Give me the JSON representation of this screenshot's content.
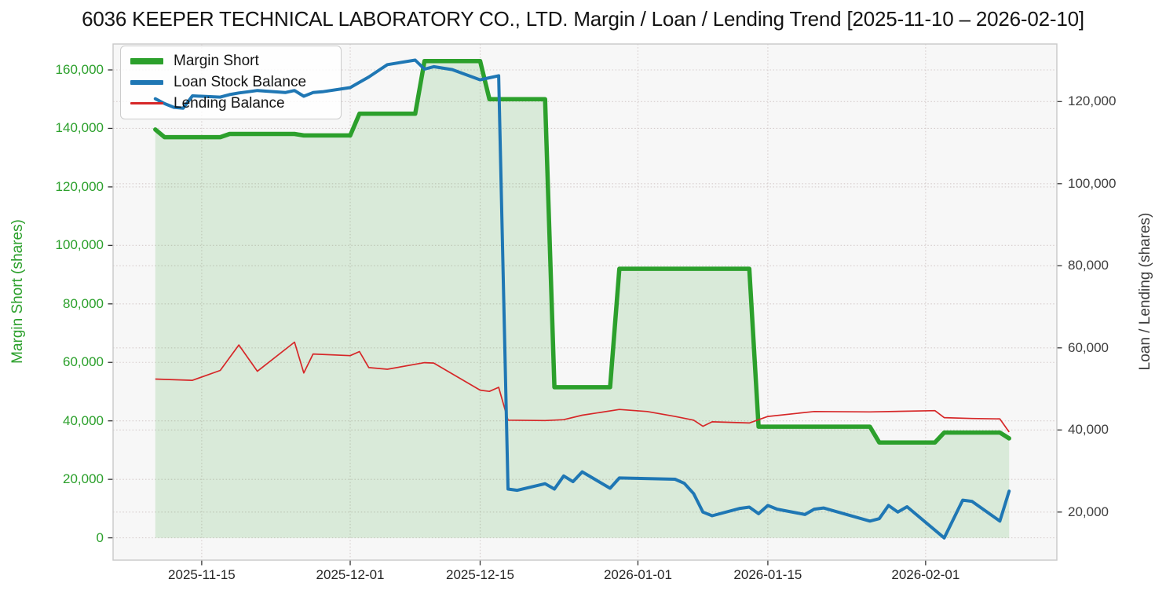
{
  "title": "6036 KEEPER TECHNICAL LABORATORY CO., LTD. Margin / Loan / Lending Trend [2025-11-10 – 2026-02-10]",
  "colors": {
    "margin_short": "#2ca02c",
    "loan_stock": "#1f77b4",
    "lending": "#d62728",
    "area_fill": "rgba(44,160,44,0.15)",
    "plot_bg": "#f7f7f7",
    "grid": "#d5cccc",
    "spine": "#c9c9c9",
    "tick_mark": "#333333",
    "x_tick_text": "#262626",
    "right_tick_text": "#3d3d3d"
  },
  "chart_data": {
    "type": "line",
    "title": "6036 KEEPER TECHNICAL LABORATORY CO., LTD. Margin / Loan / Lending Trend [2025-11-10 – 2026-02-10]",
    "grid": true,
    "legend_position": "upper-left",
    "x_axis": {
      "start": "2025-11-10",
      "end": "2026-02-10",
      "ticks": [
        "2025-11-15",
        "2025-12-01",
        "2025-12-15",
        "2026-01-01",
        "2026-01-15",
        "2026-02-01"
      ]
    },
    "left_axis": {
      "label": "Margin Short (shares)",
      "ticks": [
        0,
        20000,
        40000,
        60000,
        80000,
        100000,
        120000,
        140000,
        160000
      ],
      "ylim": [
        -7700,
        168900
      ]
    },
    "right_axis": {
      "label": "Loan / Lending (shares)",
      "ticks": [
        20000,
        40000,
        60000,
        80000,
        100000,
        120000
      ],
      "ylim": [
        8550,
        134000
      ]
    },
    "series": [
      {
        "name": "Margin Short",
        "axis": "left",
        "color": "#2ca02c",
        "width": 5.5,
        "fill": true,
        "points": [
          [
            "2025-11-10",
            139600
          ],
          [
            "2025-11-11",
            137000
          ],
          [
            "2025-11-17",
            137000
          ],
          [
            "2025-11-18",
            138100
          ],
          [
            "2025-11-25",
            138100
          ],
          [
            "2025-11-26",
            137600
          ],
          [
            "2025-12-01",
            137600
          ],
          [
            "2025-12-02",
            145000
          ],
          [
            "2025-12-08",
            145000
          ],
          [
            "2025-12-09",
            163000
          ],
          [
            "2025-12-15",
            163000
          ],
          [
            "2025-12-16",
            150000
          ],
          [
            "2025-12-22",
            150000
          ],
          [
            "2025-12-23",
            51500
          ],
          [
            "2025-12-29",
            51500
          ],
          [
            "2025-12-30",
            92000
          ],
          [
            "2026-01-13",
            92000
          ],
          [
            "2026-01-14",
            38000
          ],
          [
            "2026-01-26",
            38000
          ],
          [
            "2026-01-27",
            32600
          ],
          [
            "2026-02-02",
            32600
          ],
          [
            "2026-02-03",
            36000
          ],
          [
            "2026-02-09",
            36000
          ],
          [
            "2026-02-10",
            34000
          ]
        ]
      },
      {
        "name": "Loan Stock Balance",
        "axis": "right",
        "color": "#1f77b4",
        "width": 4,
        "fill": false,
        "points": [
          [
            "2025-11-10",
            120700
          ],
          [
            "2025-11-11",
            119500
          ],
          [
            "2025-11-12",
            118600
          ],
          [
            "2025-11-13",
            118400
          ],
          [
            "2025-11-14",
            121400
          ],
          [
            "2025-11-17",
            121100
          ],
          [
            "2025-11-18",
            121700
          ],
          [
            "2025-11-19",
            122100
          ],
          [
            "2025-11-20",
            122400
          ],
          [
            "2025-11-21",
            122700
          ],
          [
            "2025-11-24",
            122200
          ],
          [
            "2025-11-25",
            122700
          ],
          [
            "2025-11-26",
            121300
          ],
          [
            "2025-11-27",
            122200
          ],
          [
            "2025-11-28",
            122400
          ],
          [
            "2025-12-01",
            123400
          ],
          [
            "2025-12-02",
            124700
          ],
          [
            "2025-12-03",
            126000
          ],
          [
            "2025-12-04",
            127500
          ],
          [
            "2025-12-05",
            129000
          ],
          [
            "2025-12-08",
            130100
          ],
          [
            "2025-12-09",
            127900
          ],
          [
            "2025-12-10",
            128500
          ],
          [
            "2025-12-12",
            127800
          ],
          [
            "2025-12-15",
            125300
          ],
          [
            "2025-12-16",
            125800
          ],
          [
            "2025-12-17",
            126300
          ],
          [
            "2025-12-18",
            25600
          ],
          [
            "2025-12-19",
            25300
          ],
          [
            "2025-12-22",
            26900
          ],
          [
            "2025-12-23",
            25600
          ],
          [
            "2025-12-24",
            28800
          ],
          [
            "2025-12-25",
            27400
          ],
          [
            "2025-12-26",
            29800
          ],
          [
            "2025-12-29",
            25800
          ],
          [
            "2025-12-30",
            28300
          ],
          [
            "2026-01-05",
            28000
          ],
          [
            "2026-01-06",
            27000
          ],
          [
            "2026-01-07",
            24500
          ],
          [
            "2026-01-08",
            20000
          ],
          [
            "2026-01-09",
            19100
          ],
          [
            "2026-01-12",
            20900
          ],
          [
            "2026-01-13",
            21200
          ],
          [
            "2026-01-14",
            19600
          ],
          [
            "2026-01-15",
            21600
          ],
          [
            "2026-01-16",
            20700
          ],
          [
            "2026-01-19",
            19400
          ],
          [
            "2026-01-20",
            20700
          ],
          [
            "2026-01-21",
            21000
          ],
          [
            "2026-01-26",
            17800
          ],
          [
            "2026-01-27",
            18400
          ],
          [
            "2026-01-28",
            21600
          ],
          [
            "2026-01-29",
            20000
          ],
          [
            "2026-01-30",
            21300
          ],
          [
            "2026-02-03",
            13700
          ],
          [
            "2026-02-05",
            22900
          ],
          [
            "2026-02-06",
            22600
          ],
          [
            "2026-02-09",
            17800
          ],
          [
            "2026-02-10",
            25100
          ]
        ]
      },
      {
        "name": "Lending Balance",
        "axis": "right",
        "color": "#d62728",
        "width": 1.7,
        "fill": false,
        "points": [
          [
            "2025-11-10",
            52400
          ],
          [
            "2025-11-14",
            52100
          ],
          [
            "2025-11-17",
            54500
          ],
          [
            "2025-11-19",
            60700
          ],
          [
            "2025-11-21",
            54300
          ],
          [
            "2025-11-25",
            61400
          ],
          [
            "2025-11-26",
            53900
          ],
          [
            "2025-11-27",
            58500
          ],
          [
            "2025-12-01",
            58100
          ],
          [
            "2025-12-02",
            59100
          ],
          [
            "2025-12-03",
            55200
          ],
          [
            "2025-12-05",
            54800
          ],
          [
            "2025-12-09",
            56400
          ],
          [
            "2025-12-10",
            56300
          ],
          [
            "2025-12-15",
            49700
          ],
          [
            "2025-12-16",
            49400
          ],
          [
            "2025-12-17",
            50400
          ],
          [
            "2025-12-18",
            42400
          ],
          [
            "2025-12-22",
            42300
          ],
          [
            "2025-12-24",
            42500
          ],
          [
            "2025-12-26",
            43600
          ],
          [
            "2025-12-30",
            45000
          ],
          [
            "2026-01-02",
            44500
          ],
          [
            "2026-01-05",
            43300
          ],
          [
            "2026-01-07",
            42400
          ],
          [
            "2026-01-08",
            40900
          ],
          [
            "2026-01-09",
            42000
          ],
          [
            "2026-01-13",
            41700
          ],
          [
            "2026-01-15",
            43300
          ],
          [
            "2026-01-20",
            44500
          ],
          [
            "2026-01-26",
            44400
          ],
          [
            "2026-02-02",
            44700
          ],
          [
            "2026-02-03",
            43000
          ],
          [
            "2026-02-06",
            42800
          ],
          [
            "2026-02-09",
            42700
          ],
          [
            "2026-02-10",
            39500
          ]
        ]
      }
    ]
  }
}
